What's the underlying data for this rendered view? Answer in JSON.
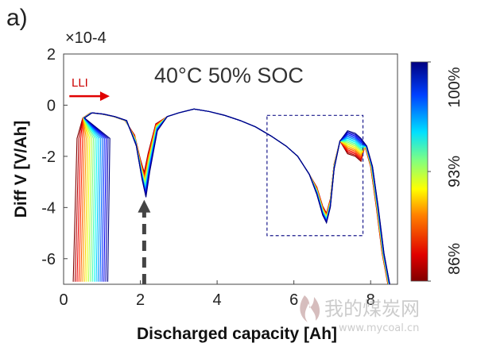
{
  "panel_label": "a)",
  "watermark": {
    "cn": "我的煤炭网",
    "url": "www.mycoal.cn"
  },
  "chart_data": {
    "type": "line",
    "title": "40°C 50% SOC",
    "xlabel": "Discharged capacity [Ah]",
    "ylabel": "Diff V [V/Ah]",
    "y_exponent": "×10-4",
    "xlim": [
      0,
      8.7
    ],
    "ylim": [
      -7,
      2
    ],
    "xticks": [
      "0",
      "2",
      "4",
      "6",
      "8"
    ],
    "yticks": [
      "2",
      "0",
      "-2",
      "-4",
      "-6"
    ],
    "grid": false,
    "colorbar": {
      "label_ticks": [
        "100%",
        "93%",
        "86%"
      ],
      "tick_fractions": [
        1.0,
        0.5,
        0.0
      ],
      "range": [
        "86%",
        "100%"
      ],
      "colormap": "jet"
    },
    "annotations": {
      "lli_label": "LLI",
      "lli_arrow_x": [
        0.15,
        1.2
      ],
      "lli_arrow_y": 0.35,
      "dashed_arrow_x": 2.1,
      "dashed_arrow_y": [
        -7.0,
        -3.7
      ],
      "dashed_box_x": [
        5.3,
        7.8
      ],
      "dashed_box_y": [
        -5.1,
        -0.4
      ]
    },
    "series_count": 19,
    "series_soc_fraction_range": [
      0.0,
      1.0
    ],
    "base_curve": {
      "x": [
        0.25,
        0.35,
        0.5,
        0.7,
        1.0,
        1.3,
        1.6,
        1.85,
        2.0,
        2.1,
        2.2,
        2.4,
        2.7,
        3.0,
        3.4,
        3.8,
        4.2,
        4.6,
        5.0,
        5.4,
        5.8,
        6.1,
        6.4,
        6.6,
        6.75,
        6.85,
        6.95,
        7.05,
        7.2,
        7.4,
        7.6,
        7.75,
        7.9,
        8.05,
        8.2,
        8.35,
        8.5
      ],
      "y": [
        -6.9,
        -1.3,
        -0.5,
        -0.3,
        -0.35,
        -0.45,
        -0.6,
        -1.6,
        -2.9,
        -3.6,
        -2.6,
        -1.0,
        -0.45,
        -0.3,
        -0.15,
        -0.25,
        -0.4,
        -0.6,
        -0.85,
        -1.2,
        -1.6,
        -2.0,
        -2.7,
        -3.5,
        -4.3,
        -4.6,
        -4.0,
        -2.5,
        -1.4,
        -1.0,
        -1.1,
        -1.3,
        -1.6,
        -2.4,
        -4.0,
        -5.8,
        -7.0
      ]
    },
    "notes_visible": "Family of colored curves from 100% (blue) to 86% (red); curves shift right with decreasing SOC; dips near 2.1 Ah and 6.8 Ah"
  }
}
